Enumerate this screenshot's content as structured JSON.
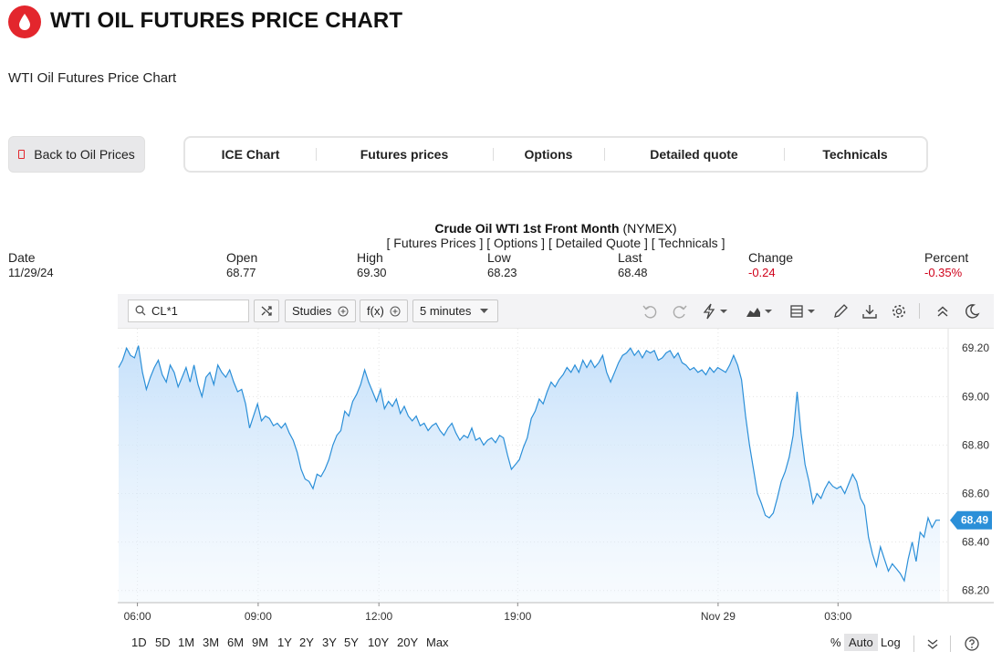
{
  "header": {
    "title": "WTI OIL FUTURES PRICE CHART",
    "subtitle": "WTI Oil Futures Price Chart",
    "accent": "#e3262d"
  },
  "back_button": {
    "label": "Back to Oil Prices"
  },
  "tabs": [
    {
      "label": "ICE Chart"
    },
    {
      "label": "Futures prices"
    },
    {
      "label": "Options"
    },
    {
      "label": "Detailed quote"
    },
    {
      "label": "Technicals"
    }
  ],
  "chart_heading": {
    "name": "Crude Oil WTI 1st Front Month",
    "exchange": "(NYMEX)",
    "links": [
      "[ Futures Prices ]",
      "[ Options ]",
      "[ Detailed Quote ]",
      "[ Technicals ]"
    ]
  },
  "quote": {
    "labels": {
      "date": "Date",
      "open": "Open",
      "high": "High",
      "low": "Low",
      "last": "Last",
      "change": "Change",
      "percent": "Percent"
    },
    "values": {
      "date": "11/29/24",
      "open": "68.77",
      "high": "69.30",
      "low": "68.23",
      "last": "68.48",
      "change": "-0.24",
      "percent": "-0.35%"
    }
  },
  "toolbar": {
    "symbol": "CL*1",
    "studies": "Studies",
    "fx": "f(x)",
    "interval": "5 minutes",
    "icons": [
      "shuffle-icon",
      "undo-icon",
      "redo-icon",
      "lightning-icon",
      "chart-type-icon",
      "layout-icon",
      "pencil-icon",
      "download-icon",
      "gear-icon",
      "collapse-icon",
      "moon-icon"
    ]
  },
  "chart_data": {
    "type": "area",
    "x_ticks": [
      "06:00",
      "09:00",
      "12:00",
      "19:00",
      "Nov 29",
      "03:00"
    ],
    "y_ticks": [
      "69.20",
      "69.00",
      "68.80",
      "68.60",
      "68.40",
      "68.20"
    ],
    "ylim": [
      68.15,
      69.28
    ],
    "last_value": "68.49",
    "grid": true,
    "color": "#2b8fd8",
    "fill": "#cfe6fb",
    "values": [
      69.12,
      69.15,
      69.2,
      69.17,
      69.16,
      69.21,
      69.1,
      69.03,
      69.08,
      69.12,
      69.15,
      69.09,
      69.06,
      69.13,
      69.1,
      69.04,
      69.08,
      69.12,
      69.06,
      69.13,
      69.05,
      69.0,
      69.08,
      69.1,
      69.05,
      69.13,
      69.1,
      69.08,
      69.11,
      69.06,
      69.02,
      69.03,
      68.97,
      68.87,
      68.92,
      68.97,
      68.9,
      68.92,
      68.91,
      68.88,
      68.89,
      68.87,
      68.89,
      68.85,
      68.82,
      68.77,
      68.7,
      68.66,
      68.65,
      68.62,
      68.68,
      68.67,
      68.7,
      68.74,
      68.8,
      68.84,
      68.86,
      68.94,
      68.92,
      68.98,
      69.01,
      69.05,
      69.11,
      69.06,
      69.02,
      68.98,
      69.03,
      68.95,
      68.98,
      68.96,
      68.99,
      68.93,
      68.96,
      68.92,
      68.9,
      68.92,
      68.88,
      68.89,
      68.86,
      68.88,
      68.89,
      68.86,
      68.84,
      68.87,
      68.89,
      68.85,
      68.82,
      68.84,
      68.83,
      68.87,
      68.82,
      68.83,
      68.8,
      68.82,
      68.83,
      68.81,
      68.84,
      68.83,
      68.76,
      68.7,
      68.72,
      68.74,
      68.79,
      68.83,
      68.91,
      68.94,
      68.99,
      68.97,
      69.02,
      69.06,
      69.04,
      69.07,
      69.09,
      69.12,
      69.1,
      69.13,
      69.1,
      69.15,
      69.12,
      69.15,
      69.12,
      69.14,
      69.17,
      69.1,
      69.06,
      69.1,
      69.14,
      69.17,
      69.18,
      69.2,
      69.17,
      69.19,
      69.16,
      69.19,
      69.18,
      69.19,
      69.15,
      69.16,
      69.18,
      69.19,
      69.16,
      69.18,
      69.14,
      69.13,
      69.11,
      69.12,
      69.1,
      69.11,
      69.09,
      69.12,
      69.1,
      69.12,
      69.11,
      69.1,
      69.13,
      69.17,
      69.13,
      69.07,
      68.92,
      68.8,
      68.7,
      68.6,
      68.56,
      68.51,
      68.5,
      68.52,
      68.58,
      68.65,
      68.69,
      68.75,
      68.84,
      69.02,
      68.85,
      68.72,
      68.65,
      68.56,
      68.6,
      68.58,
      68.62,
      68.65,
      68.63,
      68.62,
      68.63,
      68.6,
      68.64,
      68.68,
      68.65,
      68.58,
      68.55,
      68.42,
      68.35,
      68.3,
      68.38,
      68.33,
      68.28,
      68.31,
      68.29,
      68.27,
      68.24,
      68.33,
      68.4,
      68.32,
      68.44,
      68.42,
      68.5,
      68.46,
      68.49,
      68.49
    ]
  },
  "range_bar": {
    "ranges": [
      "1D",
      "5D",
      "1M",
      "3M",
      "6M",
      "9M",
      "1Y",
      "2Y",
      "3Y",
      "5Y",
      "10Y",
      "20Y",
      "Max"
    ],
    "scales": [
      "%",
      "Auto",
      "Log"
    ]
  }
}
